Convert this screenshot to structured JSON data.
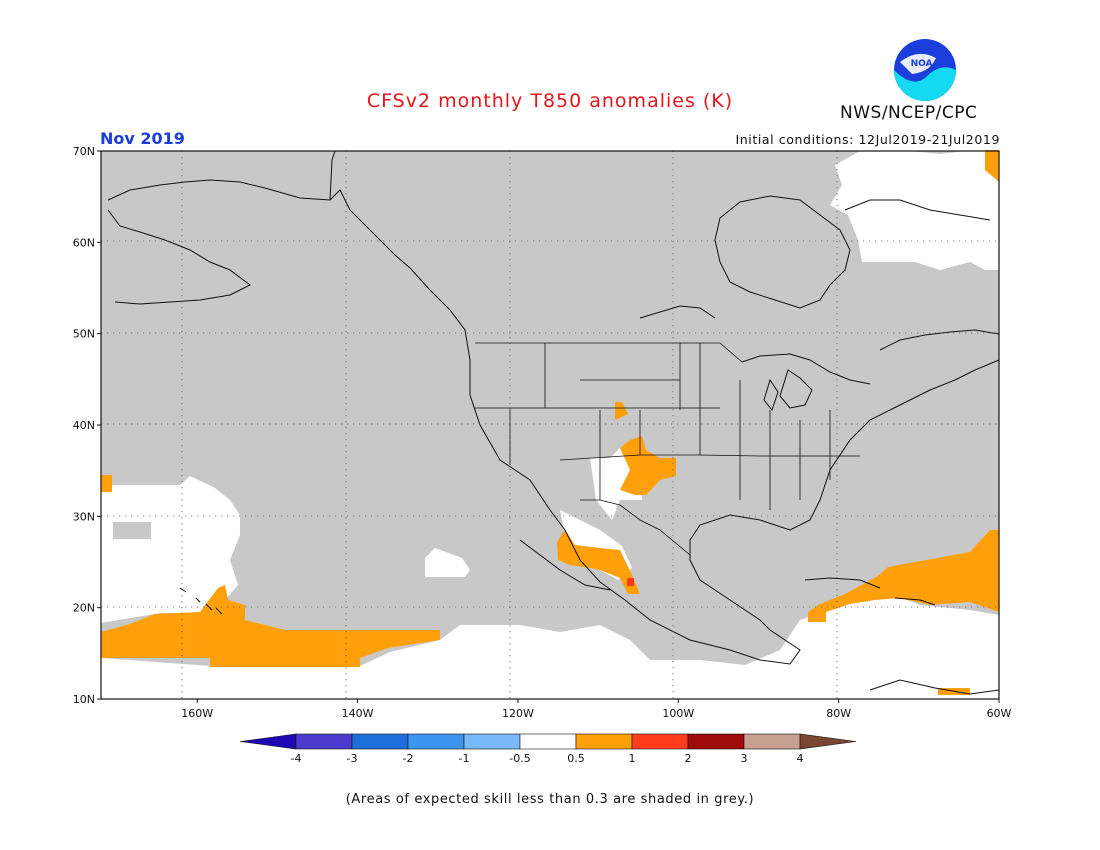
{
  "title": "CFSv2 monthly T850 anomalies (K)",
  "month": "Nov 2019",
  "agency": "NWS/NCEP/CPC",
  "logo_text": "NOAA",
  "initial_conditions": "Initial conditions: 12Jul2019-21Jul2019",
  "note": "(Areas of expected skill less than 0.3 are shaded in grey.)",
  "map": {
    "lon_range": [
      -172,
      -60
    ],
    "lat_range": [
      10,
      70
    ],
    "lat_ticks": [
      {
        "value": 70,
        "label": "70N"
      },
      {
        "value": 60,
        "label": "60N"
      },
      {
        "value": 50,
        "label": "50N"
      },
      {
        "value": 40,
        "label": "40N"
      },
      {
        "value": 30,
        "label": "30N"
      },
      {
        "value": 20,
        "label": "20N"
      },
      {
        "value": 10,
        "label": "10N"
      }
    ],
    "lon_ticks": [
      {
        "value": -160,
        "label": "160W"
      },
      {
        "value": -140,
        "label": "140W"
      },
      {
        "value": -120,
        "label": "120W"
      },
      {
        "value": -100,
        "label": "100W"
      },
      {
        "value": -80,
        "label": "80W"
      },
      {
        "value": -60,
        "label": "60W"
      }
    ],
    "colors": {
      "low_skill": "#c8c8c8",
      "neutral": "#ffffff",
      "warm_0_5_1": "#ffa00a",
      "warm_1_2": "#ff3c1e",
      "coast": "#111111"
    }
  },
  "colorbar": {
    "labels": [
      "-4",
      "-3",
      "-2",
      "-1",
      "-0.5",
      "0.5",
      "1",
      "2",
      "3",
      "4"
    ],
    "colors": [
      "#1e0ab4",
      "#4b3ccd",
      "#1e6edc",
      "#3c96f0",
      "#78b9fa",
      "#ffffff",
      "#ffa00a",
      "#ff3c1e",
      "#a00a0a",
      "#c8a092",
      "#784632"
    ]
  }
}
